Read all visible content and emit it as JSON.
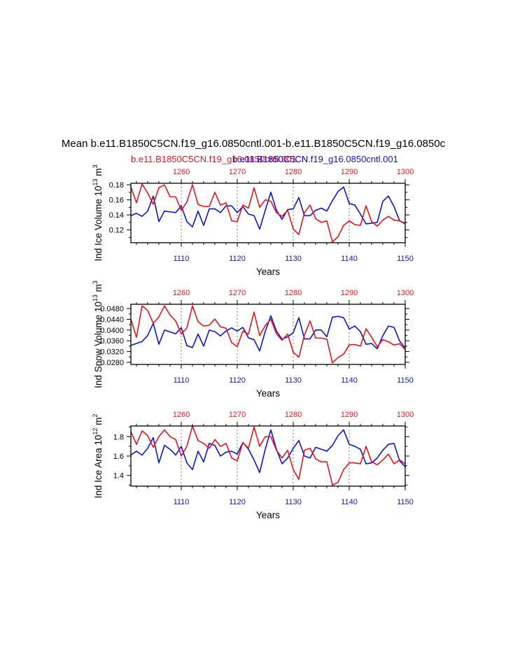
{
  "figure": {
    "title": "Mean b.e11.B1850C5CN.f19_g16.0850cntl.001-b.e11.B1850C5CN.f19_g16.0850c",
    "subtitle_red": "b.e11.B1850C5CN.f19_g16.0850cntl.001",
    "subtitle_overlap": "b.e11.B1850C5CN",
    "subtitle_blue": "b.e11.B1850C5CN.f19_g16.0850cntl.001",
    "colors": {
      "red": "#e8141c",
      "blue": "#0b14d8",
      "axis": "#000000",
      "grid": "#777777"
    }
  },
  "chart_data": [
    {
      "type": "line",
      "ylabel_main": "Ind Ice Volume 10",
      "ylabel_sup1": "13",
      "ylabel_mid": " m",
      "ylabel_sup2": "3",
      "xlabel": "Years",
      "ylim": [
        0.103,
        0.182
      ],
      "yticks": [
        0.12,
        0.14,
        0.16,
        0.18
      ],
      "ytick_labels": [
        "0.12",
        "0.14",
        "0.16",
        "0.18"
      ],
      "bottom_axis": {
        "range": [
          1101,
          1150
        ],
        "ticks": [
          1110,
          1120,
          1130,
          1140,
          1150
        ],
        "labels": [
          "1110",
          "1120",
          "1130",
          "1140",
          "1150"
        ]
      },
      "top_axis": {
        "range": [
          1251,
          1300
        ],
        "ticks": [
          1260,
          1270,
          1280,
          1290,
          1300
        ],
        "labels": [
          "1260",
          "1270",
          "1280",
          "1290",
          "1300"
        ]
      },
      "grid": "vertical-dashed",
      "series": [
        {
          "color": "blue",
          "x_axis": "bottom",
          "x_start": 1101,
          "values": [
            0.139,
            0.142,
            0.138,
            0.145,
            0.165,
            0.131,
            0.145,
            0.144,
            0.143,
            0.152,
            0.131,
            0.124,
            0.145,
            0.126,
            0.148,
            0.148,
            0.143,
            0.152,
            0.152,
            0.143,
            0.151,
            0.141,
            0.139,
            0.121,
            0.146,
            0.17,
            0.146,
            0.134,
            0.147,
            0.148,
            0.163,
            0.139,
            0.139,
            0.146,
            0.149,
            0.145,
            0.159,
            0.171,
            0.177,
            0.155,
            0.153,
            0.141,
            0.128,
            0.129,
            0.13,
            0.158,
            0.165,
            0.151,
            0.132,
            0.128
          ]
        },
        {
          "color": "red",
          "x_axis": "top",
          "x_start": 1251,
          "values": [
            0.177,
            0.156,
            0.181,
            0.169,
            0.154,
            0.176,
            0.18,
            0.164,
            0.164,
            0.146,
            0.157,
            0.18,
            0.154,
            0.151,
            0.151,
            0.17,
            0.153,
            0.156,
            0.132,
            0.131,
            0.153,
            0.149,
            0.176,
            0.15,
            0.16,
            0.158,
            0.143,
            0.138,
            0.146,
            0.121,
            0.114,
            0.143,
            0.153,
            0.135,
            0.13,
            0.132,
            0.104,
            0.111,
            0.126,
            0.132,
            0.127,
            0.126,
            0.152,
            0.131,
            0.125,
            0.133,
            0.138,
            0.133,
            0.132,
            0.129
          ]
        }
      ]
    },
    {
      "type": "line",
      "ylabel_main": "Ind Snow Volume 10",
      "ylabel_sup1": "13",
      "ylabel_mid": " m",
      "ylabel_sup2": "3",
      "xlabel": "Years",
      "ylim": [
        0.0272,
        0.0496
      ],
      "yticks": [
        0.028,
        0.032,
        0.036,
        0.04,
        0.044,
        0.048
      ],
      "ytick_labels": [
        "0.0280",
        "0.0320",
        "0.0360",
        "0.0400",
        "0.0440",
        "0.0480"
      ],
      "bottom_axis": {
        "range": [
          1101,
          1150
        ],
        "ticks": [
          1110,
          1120,
          1130,
          1140,
          1150
        ],
        "labels": [
          "1110",
          "1120",
          "1130",
          "1140",
          "1150"
        ]
      },
      "top_axis": {
        "range": [
          1251,
          1300
        ],
        "ticks": [
          1260,
          1270,
          1280,
          1290,
          1300
        ],
        "labels": [
          "1260",
          "1270",
          "1280",
          "1290",
          "1300"
        ]
      },
      "grid": "vertical-dashed",
      "series": [
        {
          "color": "blue",
          "x_axis": "bottom",
          "x_start": 1101,
          "values": [
            0.0343,
            0.035,
            0.0357,
            0.038,
            0.0425,
            0.0347,
            0.04,
            0.0393,
            0.0386,
            0.0409,
            0.0342,
            0.0335,
            0.0385,
            0.034,
            0.04,
            0.0394,
            0.0378,
            0.0397,
            0.0408,
            0.0396,
            0.041,
            0.0371,
            0.0364,
            0.0322,
            0.0395,
            0.0453,
            0.0396,
            0.0366,
            0.0375,
            0.039,
            0.0446,
            0.0367,
            0.0367,
            0.04,
            0.04,
            0.0375,
            0.0448,
            0.0451,
            0.0446,
            0.0404,
            0.0415,
            0.0394,
            0.0347,
            0.035,
            0.033,
            0.0379,
            0.0415,
            0.041,
            0.0359,
            0.0333
          ]
        },
        {
          "color": "red",
          "x_axis": "top",
          "x_start": 1251,
          "values": [
            0.044,
            0.0373,
            0.049,
            0.0473,
            0.0425,
            0.0449,
            0.049,
            0.0456,
            0.0434,
            0.0385,
            0.0408,
            0.049,
            0.0431,
            0.0415,
            0.0418,
            0.0441,
            0.0412,
            0.0407,
            0.0353,
            0.0338,
            0.0396,
            0.0385,
            0.0467,
            0.0379,
            0.0417,
            0.044,
            0.0386,
            0.0362,
            0.0385,
            0.0317,
            0.0299,
            0.0381,
            0.0434,
            0.037,
            0.037,
            0.0366,
            0.0278,
            0.0298,
            0.031,
            0.0345,
            0.0346,
            0.034,
            0.0405,
            0.0373,
            0.0338,
            0.0364,
            0.0356,
            0.0344,
            0.0349,
            0.0327
          ]
        }
      ]
    },
    {
      "type": "line",
      "ylabel_main": "Ind Ice Area 10",
      "ylabel_sup1": "12",
      "ylabel_mid": " m",
      "ylabel_sup2": "2",
      "xlabel": "Years",
      "ylim": [
        1.29,
        1.91
      ],
      "yticks": [
        1.4,
        1.6,
        1.8
      ],
      "ytick_labels": [
        "1.4",
        "1.6",
        "1.8"
      ],
      "bottom_axis": {
        "range": [
          1101,
          1150
        ],
        "ticks": [
          1110,
          1120,
          1130,
          1140,
          1150
        ],
        "labels": [
          "1110",
          "1120",
          "1130",
          "1140",
          "1150"
        ]
      },
      "top_axis": {
        "range": [
          1251,
          1300
        ],
        "ticks": [
          1260,
          1270,
          1280,
          1290,
          1300
        ],
        "labels": [
          "1260",
          "1270",
          "1280",
          "1290",
          "1300"
        ]
      },
      "grid": "vertical-dashed",
      "series": [
        {
          "color": "blue",
          "x_axis": "bottom",
          "x_start": 1101,
          "values": [
            1.61,
            1.65,
            1.61,
            1.68,
            1.79,
            1.53,
            1.71,
            1.67,
            1.61,
            1.7,
            1.53,
            1.46,
            1.65,
            1.54,
            1.73,
            1.71,
            1.6,
            1.64,
            1.65,
            1.62,
            1.74,
            1.67,
            1.56,
            1.43,
            1.67,
            1.87,
            1.67,
            1.52,
            1.58,
            1.68,
            1.76,
            1.6,
            1.58,
            1.69,
            1.67,
            1.65,
            1.71,
            1.81,
            1.87,
            1.72,
            1.7,
            1.67,
            1.52,
            1.53,
            1.58,
            1.66,
            1.72,
            1.73,
            1.55,
            1.49
          ]
        },
        {
          "color": "red",
          "x_axis": "top",
          "x_start": 1251,
          "values": [
            1.85,
            1.72,
            1.86,
            1.81,
            1.69,
            1.8,
            1.87,
            1.8,
            1.77,
            1.6,
            1.7,
            1.91,
            1.76,
            1.73,
            1.68,
            1.77,
            1.7,
            1.73,
            1.58,
            1.55,
            1.74,
            1.68,
            1.9,
            1.7,
            1.8,
            1.8,
            1.66,
            1.58,
            1.66,
            1.46,
            1.36,
            1.66,
            1.68,
            1.57,
            1.54,
            1.54,
            1.3,
            1.33,
            1.46,
            1.53,
            1.53,
            1.52,
            1.7,
            1.54,
            1.51,
            1.56,
            1.62,
            1.52,
            1.56,
            1.52
          ]
        }
      ]
    }
  ]
}
